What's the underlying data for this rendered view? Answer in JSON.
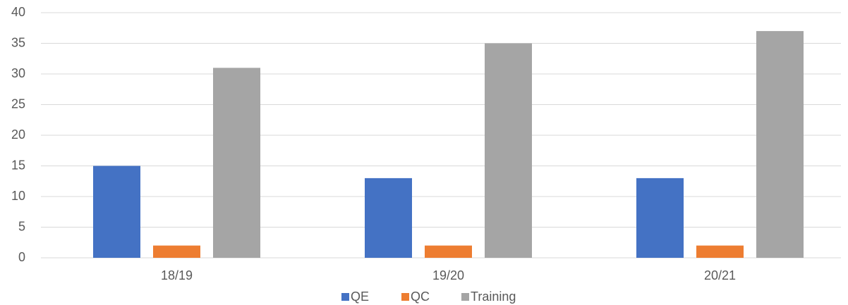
{
  "chart_data": {
    "type": "bar",
    "categories": [
      "18/19",
      "19/20",
      "20/21"
    ],
    "series": [
      {
        "name": "QE",
        "color": "#4472c4",
        "values": [
          15,
          13,
          13
        ]
      },
      {
        "name": "QC",
        "color": "#ed7d31",
        "values": [
          2,
          2,
          2
        ]
      },
      {
        "name": "Training",
        "color": "#a5a5a5",
        "values": [
          31,
          35,
          37
        ]
      }
    ],
    "ylim": [
      0,
      40
    ],
    "yticks": [
      0,
      5,
      10,
      15,
      20,
      25,
      30,
      35,
      40
    ],
    "grid": true,
    "legend": "bottom"
  }
}
